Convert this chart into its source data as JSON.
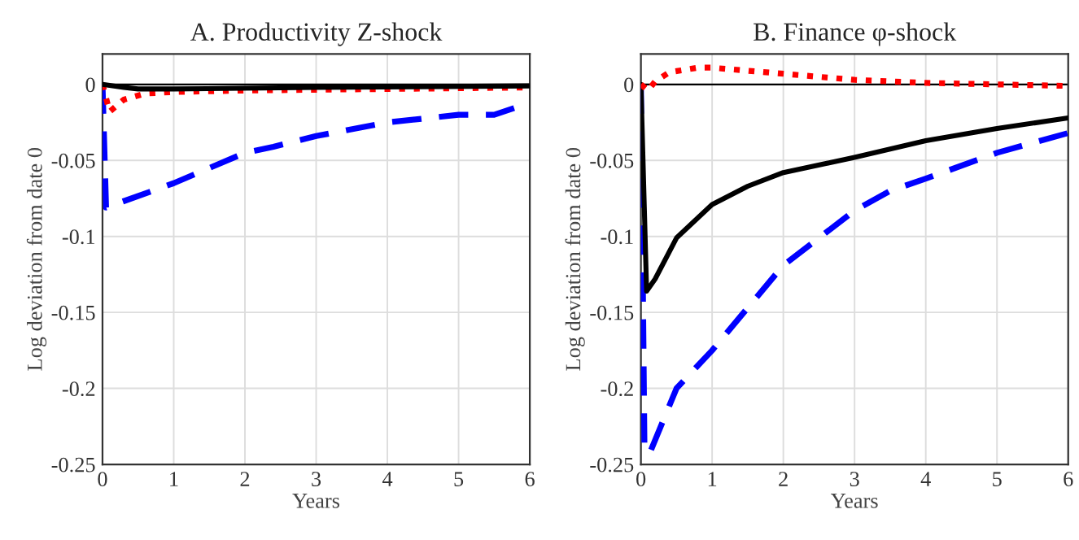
{
  "chart_data": [
    {
      "type": "line",
      "title": "A. Productivity Z-shock",
      "xlabel": "Years",
      "ylabel": "Log deviation from date 0",
      "xlim": [
        0,
        6
      ],
      "xticks": [
        0,
        1,
        2,
        3,
        4,
        5,
        6
      ],
      "ylim": [
        -0.25,
        0.02
      ],
      "yticks": [
        -0.25,
        -0.2,
        -0.15,
        -0.1,
        -0.05,
        0
      ],
      "grid": true,
      "ref_lines": [
        {
          "axis": "y",
          "value": 0,
          "color": "#000000",
          "line_style": "solid"
        }
      ],
      "series": [
        {
          "color": "#0000ff",
          "line_style": "dashed",
          "x": [
            0,
            0.05,
            1,
            2,
            2.4,
            3,
            4,
            5,
            5.5,
            6
          ],
          "values": [
            0,
            -0.081,
            -0.065,
            -0.045,
            -0.041,
            -0.034,
            -0.025,
            -0.02,
            -0.02,
            -0.012
          ]
        },
        {
          "color": "#ff0000",
          "line_style": "dotted",
          "x": [
            0,
            0.1,
            0.3,
            0.6,
            1,
            2,
            4,
            6
          ],
          "values": [
            0,
            -0.018,
            -0.01,
            -0.006,
            -0.005,
            -0.004,
            -0.003,
            -0.002
          ]
        },
        {
          "color": "#000000",
          "line_style": "solid",
          "x": [
            0,
            0.3,
            0.5,
            1,
            3,
            6
          ],
          "values": [
            0,
            -0.002,
            -0.003,
            -0.003,
            -0.002,
            -0.001
          ]
        }
      ]
    },
    {
      "type": "line",
      "title": "B. Finance φ-shock",
      "xlabel": "Years",
      "ylabel": "Log deviation from date 0",
      "xlim": [
        0,
        6
      ],
      "xticks": [
        0,
        1,
        2,
        3,
        4,
        5,
        6
      ],
      "ylim": [
        -0.25,
        0.02
      ],
      "yticks": [
        -0.25,
        -0.2,
        -0.15,
        -0.1,
        -0.05,
        0
      ],
      "grid": true,
      "ref_lines": [
        {
          "axis": "y",
          "value": 0,
          "color": "#000000",
          "line_style": "solid"
        }
      ],
      "series": [
        {
          "color": "#0000ff",
          "line_style": "dashed",
          "x": [
            0,
            0.05,
            0.12,
            0.5,
            1,
            1.5,
            2,
            2.5,
            3,
            3.5,
            4,
            5,
            6
          ],
          "values": [
            0,
            -0.24,
            -0.243,
            -0.2,
            -0.175,
            -0.147,
            -0.119,
            -0.101,
            -0.083,
            -0.07,
            -0.062,
            -0.045,
            -0.032
          ]
        },
        {
          "color": "#000000",
          "line_style": "solid",
          "x": [
            0,
            0.08,
            0.2,
            0.5,
            1,
            1.5,
            2,
            3,
            4,
            5,
            6
          ],
          "values": [
            0,
            -0.136,
            -0.128,
            -0.101,
            -0.079,
            -0.067,
            -0.058,
            -0.048,
            -0.037,
            -0.029,
            -0.022
          ]
        },
        {
          "color": "#ff0000",
          "line_style": "dotted",
          "x": [
            0,
            0.1,
            0.2,
            0.4,
            0.8,
            1,
            2,
            3,
            4,
            5,
            6
          ],
          "values": [
            0,
            -0.004,
            0.002,
            0.008,
            0.011,
            0.011,
            0.007,
            0.003,
            0.001,
            0,
            -0.001
          ]
        }
      ]
    }
  ]
}
